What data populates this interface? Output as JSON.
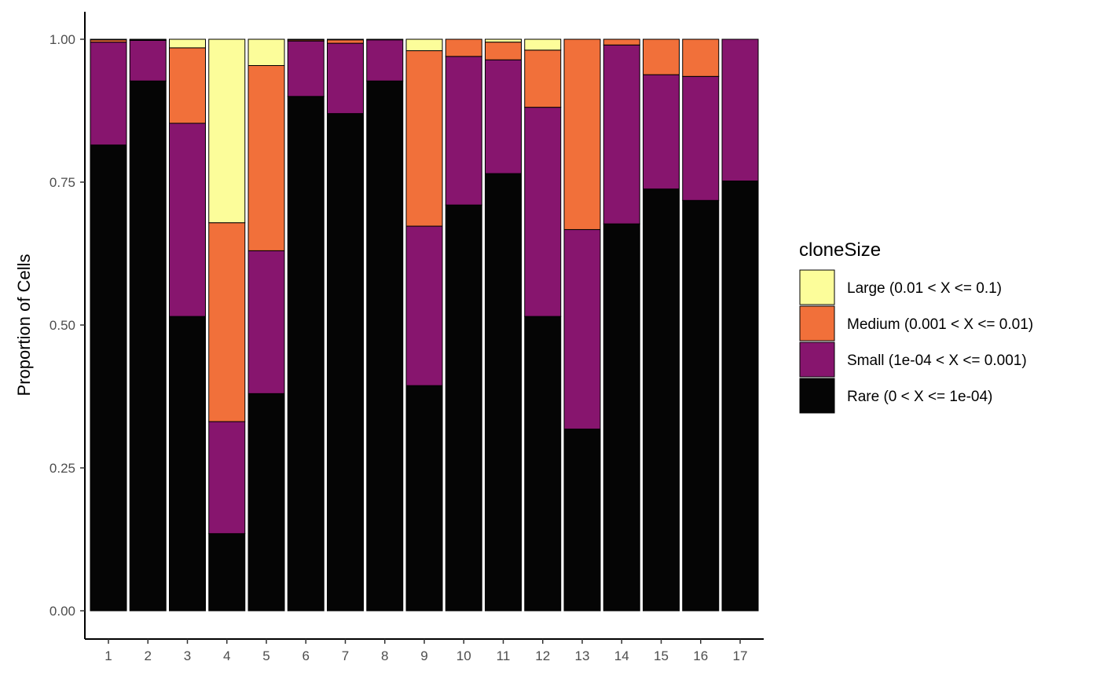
{
  "chart_data": {
    "type": "bar",
    "stacked": true,
    "categories": [
      "1",
      "2",
      "3",
      "4",
      "5",
      "6",
      "7",
      "8",
      "9",
      "10",
      "11",
      "12",
      "13",
      "14",
      "15",
      "16",
      "17"
    ],
    "ylabel": "Proportion of Cells",
    "xlabel": "",
    "ylim": [
      0,
      1
    ],
    "yticks": [
      "0.00",
      "0.25",
      "0.50",
      "0.75",
      "1.00"
    ],
    "ytick_values": [
      0,
      0.25,
      0.5,
      0.75,
      1.0
    ],
    "legend": {
      "title": "cloneSize",
      "placement": "right",
      "entries": [
        {
          "label": "Large (0.01 < X <= 0.1)",
          "color": "#FCFD9A"
        },
        {
          "label": "Medium (0.001 < X <= 0.01)",
          "color": "#F1703A"
        },
        {
          "label": "Small (1e-04 < X <= 0.001)",
          "color": "#87156E"
        },
        {
          "label": "Rare (0 < X <= 1e-04)",
          "color": "#050505"
        }
      ]
    },
    "series": [
      {
        "name": "Rare (0 < X <= 1e-04)",
        "color": "#050505",
        "values": [
          0.815,
          0.927,
          0.515,
          0.135,
          0.38,
          0.9,
          0.87,
          0.927,
          0.394,
          0.71,
          0.765,
          0.515,
          0.318,
          0.677,
          0.738,
          0.718,
          0.752
        ]
      },
      {
        "name": "Small (1e-04 < X <= 0.001)",
        "color": "#87156E",
        "values": [
          0.18,
          0.071,
          0.338,
          0.196,
          0.25,
          0.097,
          0.123,
          0.072,
          0.279,
          0.26,
          0.199,
          0.366,
          0.349,
          0.313,
          0.2,
          0.217,
          0.248
        ]
      },
      {
        "name": "Medium (0.001 < X <= 0.01)",
        "color": "#F1703A",
        "values": [
          0.004,
          0.001,
          0.132,
          0.348,
          0.324,
          0.002,
          0.006,
          0.0,
          0.307,
          0.03,
          0.031,
          0.1,
          0.333,
          0.01,
          0.062,
          0.065,
          0.0
        ]
      },
      {
        "name": "Large (0.01 < X <= 0.1)",
        "color": "#FCFD9A",
        "values": [
          0.001,
          0.001,
          0.015,
          0.321,
          0.046,
          0.001,
          0.001,
          0.001,
          0.02,
          0.0,
          0.005,
          0.019,
          0.0,
          0.0,
          0.0,
          0.0,
          0.0
        ]
      }
    ],
    "grid": false
  }
}
